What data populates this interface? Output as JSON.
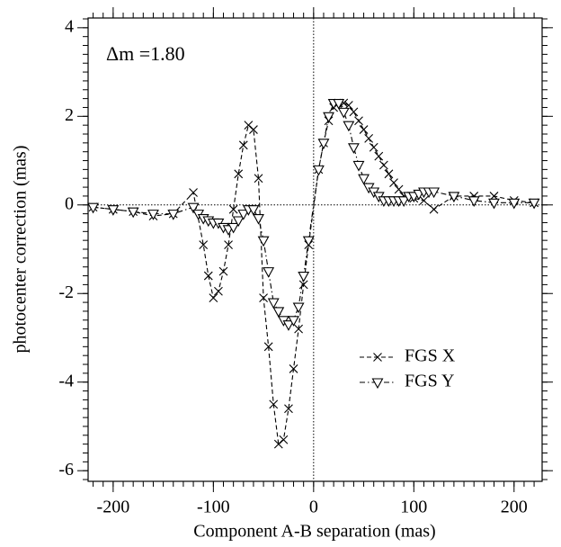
{
  "chart_data": {
    "type": "line",
    "annotation": "Δm =1.80",
    "xlabel": "Component A-B separation (mas)",
    "ylabel": "photocenter correction (mas)",
    "xlim": [
      -225,
      228
    ],
    "ylim": [
      -6.24,
      4.22
    ],
    "xticks": [
      -200,
      -100,
      0,
      100,
      200
    ],
    "yticks": [
      -6,
      -4,
      -2,
      0,
      2,
      4
    ],
    "series": [
      {
        "name": "FGS X",
        "color": "#000000",
        "marker": "cross",
        "linestyle": "dashed",
        "x": [
          -220,
          -200,
          -180,
          -160,
          -140,
          -120,
          -110,
          -105,
          -100,
          -95,
          -90,
          -85,
          -80,
          -75,
          -70,
          -65,
          -60,
          -55,
          -50,
          -45,
          -40,
          -35,
          -30,
          -25,
          -20,
          -15,
          -10,
          -5,
          5,
          10,
          15,
          20,
          25,
          30,
          35,
          40,
          45,
          50,
          55,
          60,
          65,
          70,
          75,
          80,
          85,
          90,
          100,
          110,
          120,
          140,
          160,
          180,
          200,
          220
        ],
        "values": [
          -0.05,
          -0.1,
          -0.15,
          -0.25,
          -0.2,
          0.28,
          -0.9,
          -1.6,
          -2.1,
          -1.95,
          -1.5,
          -0.9,
          -0.1,
          0.7,
          1.35,
          1.8,
          1.7,
          0.6,
          -2.1,
          -3.2,
          -4.5,
          -5.4,
          -5.3,
          -4.6,
          -3.7,
          -2.8,
          -1.8,
          -0.9,
          0.8,
          1.4,
          1.9,
          2.2,
          2.3,
          2.3,
          2.25,
          2.1,
          1.9,
          1.7,
          1.5,
          1.3,
          1.1,
          0.9,
          0.7,
          0.5,
          0.35,
          0.2,
          0.15,
          0.1,
          -0.1,
          0.2,
          0.2,
          0.2,
          0.1,
          0.05
        ]
      },
      {
        "name": "FGS Y",
        "color": "#000000",
        "marker": "triangle",
        "linestyle": "dashdot",
        "x": [
          -220,
          -200,
          -180,
          -160,
          -140,
          -120,
          -115,
          -110,
          -105,
          -100,
          -95,
          -90,
          -85,
          -80,
          -75,
          -70,
          -65,
          -60,
          -55,
          -50,
          -45,
          -40,
          -35,
          -30,
          -25,
          -20,
          -15,
          -10,
          -5,
          5,
          10,
          15,
          20,
          25,
          30,
          35,
          40,
          45,
          50,
          55,
          60,
          65,
          70,
          75,
          80,
          85,
          90,
          95,
          100,
          105,
          110,
          115,
          120,
          140,
          160,
          180,
          200,
          220
        ],
        "values": [
          -0.05,
          -0.1,
          -0.15,
          -0.2,
          -0.2,
          -0.05,
          -0.2,
          -0.3,
          -0.35,
          -0.4,
          -0.4,
          -0.5,
          -0.55,
          -0.5,
          -0.35,
          -0.2,
          -0.1,
          -0.1,
          -0.3,
          -0.8,
          -1.5,
          -2.2,
          -2.4,
          -2.6,
          -2.7,
          -2.6,
          -2.3,
          -1.6,
          -0.8,
          0.8,
          1.4,
          2.0,
          2.3,
          2.3,
          2.1,
          1.8,
          1.3,
          0.9,
          0.6,
          0.4,
          0.3,
          0.2,
          0.1,
          0.1,
          0.1,
          0.1,
          0.1,
          0.2,
          0.2,
          0.25,
          0.3,
          0.3,
          0.3,
          0.2,
          0.1,
          0.05,
          0.05,
          0.05
        ]
      }
    ]
  }
}
